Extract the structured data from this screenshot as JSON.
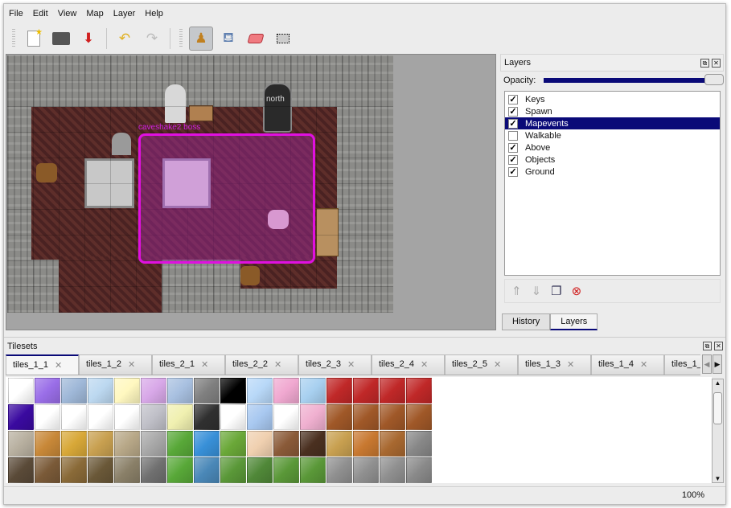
{
  "menu": [
    "File",
    "Edit",
    "View",
    "Map",
    "Layer",
    "Help"
  ],
  "toolbar": {
    "icons": [
      "new-document-icon",
      "open-icon",
      "save-icon",
      "undo-icon",
      "redo-icon",
      "stamp-brush-icon",
      "bucket-fill-icon",
      "eraser-icon",
      "rectangle-select-icon"
    ],
    "active": "stamp-brush-icon"
  },
  "map": {
    "object_label": "caveshake2 boss",
    "north_label": "north"
  },
  "layers_dock": {
    "title": "Layers",
    "opacity_label": "Opacity:",
    "opacity": 1.0,
    "layers": [
      {
        "name": "Keys",
        "visible": true
      },
      {
        "name": "Spawn",
        "visible": true
      },
      {
        "name": "Mapevents",
        "visible": true,
        "selected": true
      },
      {
        "name": "Walkable",
        "visible": false
      },
      {
        "name": "Above",
        "visible": true
      },
      {
        "name": "Objects",
        "visible": true
      },
      {
        "name": "Ground",
        "visible": true
      }
    ],
    "tabs": [
      "History",
      "Layers"
    ],
    "active_tab": "Layers"
  },
  "tilesets_dock": {
    "title": "Tilesets",
    "tabs": [
      "tiles_1_1",
      "tiles_1_2",
      "tiles_2_1",
      "tiles_2_2",
      "tiles_2_3",
      "tiles_2_4",
      "tiles_2_5",
      "tiles_1_3",
      "tiles_1_4",
      "tiles_1_"
    ],
    "active_tab": "tiles_1_1",
    "tile_colors": [
      [
        "#ffffff",
        "#9a6ee8",
        "#9fb8d8",
        "#bcd8f0",
        "#fff8c0",
        "#d8a8e8",
        "#a8c0e0",
        "#808080",
        "#000000",
        "#b8d8f8",
        "#f0a8d0",
        "#a8d0f0",
        "#c02828",
        "#c02828",
        "#c02828",
        "#c02828"
      ],
      [
        "#3a0aa0",
        "#ffffff",
        "#ffffff",
        "#ffffff",
        "#ffffff",
        "#c0c0c8",
        "#f0f0b0",
        "#303030",
        "#ffffff",
        "#a8c8f0",
        "#ffffff",
        "#f0b0d0",
        "#a05828",
        "#a05828",
        "#a05828",
        "#a05828"
      ],
      [
        "#b8b0a0",
        "#c88838",
        "#d8a838",
        "#c8a050",
        "#b8a888",
        "#a8a8a8",
        "#58a838",
        "#3890d8",
        "#6aa838",
        "#f0d0b0",
        "#8a5a38",
        "#4a3020",
        "#c8a050",
        "#c87830",
        "#a86830",
        "#888888"
      ],
      [
        "#5a4a38",
        "#7a5a38",
        "#8a6a38",
        "#6a5838",
        "#8a8068",
        "#707070",
        "#58a838",
        "#4a88b8",
        "#5a9838",
        "#508838",
        "#5a9838",
        "#5a9838",
        "#909090",
        "#909090",
        "#909090",
        "#8a8a8a"
      ]
    ]
  },
  "status": {
    "zoom": "100%"
  }
}
